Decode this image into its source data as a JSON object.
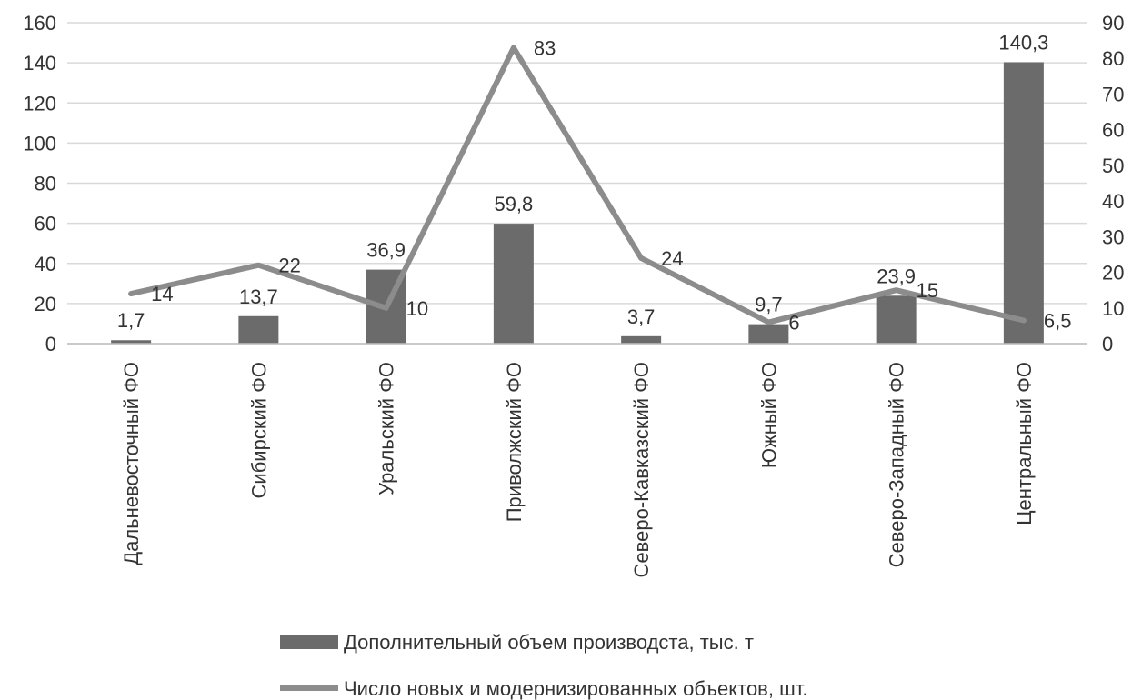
{
  "chart_data": {
    "type": "bar",
    "categories": [
      "Дальневосточный ФО",
      "Сибирский ФО",
      "Уральский ФО",
      "Приволжский ФО",
      "Северо-Кавказский ФО",
      "Южный ФО",
      "Северо-Западный ФО",
      "Центральный ФО"
    ],
    "series": [
      {
        "name": "Дополнительный объем производста, тыс. т",
        "type": "bar",
        "axis": "left",
        "values": [
          1.7,
          13.7,
          36.9,
          59.8,
          3.7,
          9.7,
          23.9,
          140.3
        ],
        "labels": [
          "1,7",
          "13,7",
          "36,9",
          "59,8",
          "3,7",
          "9,7",
          "23,9",
          "140,3"
        ],
        "color": "#6b6b6b"
      },
      {
        "name": "Число новых и модернизированных объектов, шт.",
        "type": "line",
        "axis": "right",
        "values": [
          14,
          22,
          10,
          83,
          24,
          6,
          15,
          6.5
        ],
        "labels": [
          "14",
          "22",
          "10",
          "83",
          "24",
          "6",
          "15",
          "6,5"
        ],
        "color": "#8c8c8c"
      }
    ],
    "ylim_left": [
      0,
      160
    ],
    "yticks_left": [
      "0",
      "20",
      "40",
      "60",
      "80",
      "100",
      "120",
      "140",
      "160"
    ],
    "ylim_right": [
      0,
      90
    ],
    "yticks_right": [
      "0",
      "10",
      "20",
      "30",
      "40",
      "50",
      "60",
      "70",
      "80",
      "90"
    ],
    "grid": true,
    "legend_position": "bottom"
  }
}
